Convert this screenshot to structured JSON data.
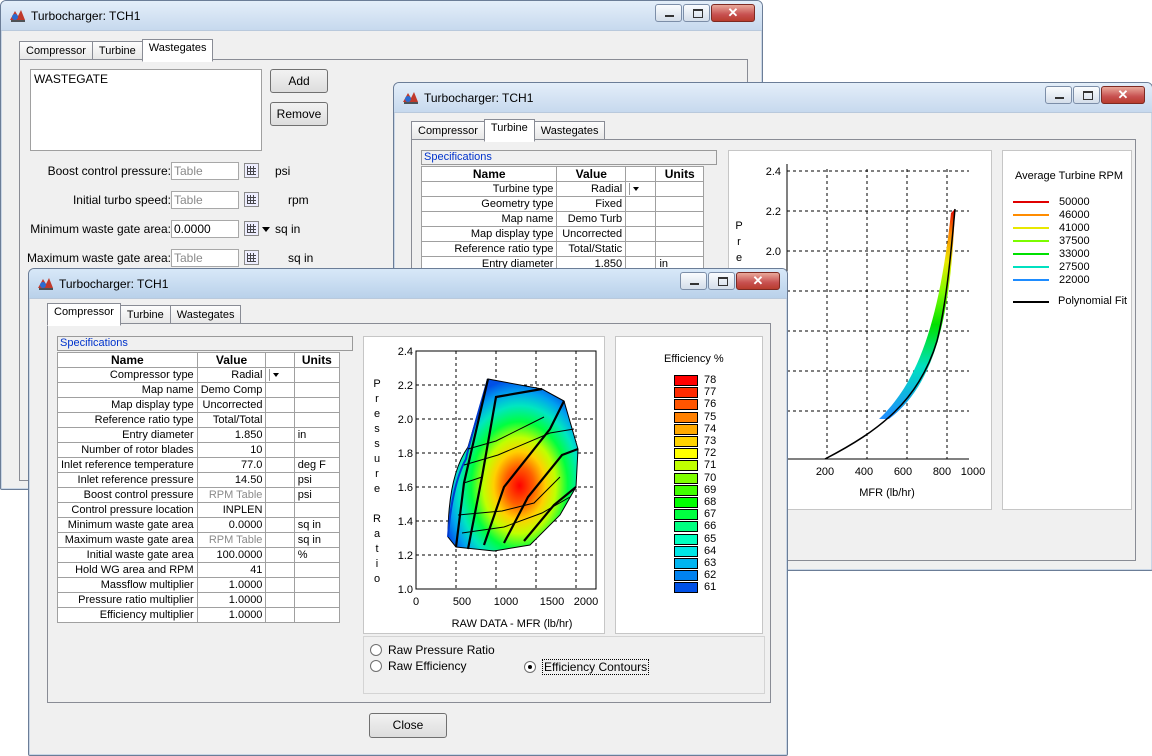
{
  "colors": {
    "accent_link": "#0033cc",
    "close_button": "#c75050",
    "window_border": "#6b7d97"
  },
  "window_back": {
    "title": "Turbocharger: TCH1",
    "tabs": [
      "Compressor",
      "Turbine",
      "Wastegates"
    ],
    "list_item": "WASTEGATE",
    "add_label": "Add",
    "remove_label": "Remove",
    "fields": [
      {
        "label": "Boost control pressure:",
        "value": "Table",
        "unit": "psi"
      },
      {
        "label": "Initial turbo speed:",
        "value": "Table",
        "unit": "rpm"
      },
      {
        "label": "Minimum waste gate area:",
        "value": "0.0000",
        "unit": "sq in"
      },
      {
        "label": "Maximum waste gate area:",
        "value": "Table",
        "unit": "sq in"
      }
    ]
  },
  "window_turbine": {
    "title": "Turbocharger: TCH1",
    "tabs": [
      "Compressor",
      "Turbine",
      "Wastegates"
    ],
    "spec_title": "Specifications",
    "headers": [
      "Name",
      "Value",
      "",
      "Units"
    ],
    "rows": [
      {
        "name": "Turbine type",
        "value": "Radial",
        "dd": true,
        "unit": ""
      },
      {
        "name": "Geometry type",
        "value": "Fixed",
        "unit": ""
      },
      {
        "name": "Map name",
        "value": "Demo Turb",
        "unit": ""
      },
      {
        "name": "Map display type",
        "value": "Uncorrected",
        "unit": ""
      },
      {
        "name": "Reference ratio type",
        "value": "Total/Static",
        "unit": ""
      },
      {
        "name": "Entry diameter",
        "value": "1.850",
        "unit": "in"
      }
    ],
    "chart": {
      "y_letters": [
        "P",
        "r",
        "e"
      ],
      "xlabel": "MFR  (lb/hr)",
      "yticks": [
        "2.4",
        "2.2",
        "2.0"
      ],
      "xticks": [
        "200",
        "400",
        "600",
        "800",
        "1000"
      ]
    },
    "legend_title": "Average Turbine RPM",
    "legend": [
      {
        "label": "50000",
        "color": "#e00000"
      },
      {
        "label": "46000",
        "color": "#ff8c00"
      },
      {
        "label": "41000",
        "color": "#e8e800"
      },
      {
        "label": "37500",
        "color": "#7cfc00"
      },
      {
        "label": "33000",
        "color": "#00e000"
      },
      {
        "label": "27500",
        "color": "#00e0c0"
      },
      {
        "label": "22000",
        "color": "#1e8cff"
      }
    ],
    "fit_label": "Polynomial Fit"
  },
  "window_front": {
    "title": "Turbocharger: TCH1",
    "tabs": [
      "Compressor",
      "Turbine",
      "Wastegates"
    ],
    "spec_title": "Specifications",
    "headers": [
      "Name",
      "Value",
      "",
      "Units"
    ],
    "rows": [
      {
        "name": "Compressor type",
        "value": "Radial",
        "dd": true,
        "unit": ""
      },
      {
        "name": "Map name",
        "value": "Demo Comp",
        "unit": ""
      },
      {
        "name": "Map display type",
        "value": "Uncorrected",
        "unit": ""
      },
      {
        "name": "Reference ratio type",
        "value": "Total/Total",
        "unit": ""
      },
      {
        "name": "Entry diameter",
        "value": "1.850",
        "unit": "in"
      },
      {
        "name": "Number of rotor blades",
        "value": "10",
        "unit": ""
      },
      {
        "name": "Inlet reference temperature",
        "value": "77.0",
        "unit": "deg F"
      },
      {
        "name": "Inlet reference pressure",
        "value": "14.50",
        "unit": "psi"
      },
      {
        "name": "Boost control pressure",
        "value": "RPM Table",
        "gray": true,
        "unit": "psi"
      },
      {
        "name": "Control pressure location",
        "value": "INPLEN",
        "unit": ""
      },
      {
        "name": "Minimum waste gate area",
        "value": "0.0000",
        "unit": "sq in"
      },
      {
        "name": "Maximum waste gate area",
        "value": "RPM Table",
        "gray": true,
        "unit": "sq in"
      },
      {
        "name": "Initial waste gate area",
        "value": "100.0000",
        "unit": "%"
      },
      {
        "name": "Hold WG area and RPM",
        "value": "41",
        "unit": ""
      },
      {
        "name": "Massflow multiplier",
        "value": "1.0000",
        "unit": ""
      },
      {
        "name": "Pressure ratio multiplier",
        "value": "1.0000",
        "unit": ""
      },
      {
        "name": "Efficiency multiplier",
        "value": "1.0000",
        "unit": ""
      }
    ],
    "chart": {
      "y_letters": [
        "P",
        "r",
        "e",
        "s",
        "s",
        "u",
        "r",
        "e",
        "",
        "R",
        "a",
        "t",
        "i",
        "o"
      ],
      "xlabel": "RAW DATA  -  MFR  (lb/hr)",
      "yticks": [
        "2.4",
        "2.2",
        "2.0",
        "1.8",
        "1.6",
        "1.4",
        "1.2",
        "1.0"
      ],
      "xticks": [
        "0",
        "500",
        "1000",
        "1500",
        "2000"
      ]
    },
    "eff_title": "Efficiency %",
    "eff_legend": [
      {
        "label": "78",
        "color": "#ff0000"
      },
      {
        "label": "77",
        "color": "#ff2a00"
      },
      {
        "label": "76",
        "color": "#ff5500"
      },
      {
        "label": "75",
        "color": "#ff8000"
      },
      {
        "label": "74",
        "color": "#ffaa00"
      },
      {
        "label": "73",
        "color": "#ffd400"
      },
      {
        "label": "72",
        "color": "#ffff00"
      },
      {
        "label": "71",
        "color": "#c0ff00"
      },
      {
        "label": "70",
        "color": "#80ff00"
      },
      {
        "label": "69",
        "color": "#40ff00"
      },
      {
        "label": "68",
        "color": "#00ff00"
      },
      {
        "label": "67",
        "color": "#00ff40"
      },
      {
        "label": "66",
        "color": "#00ff80"
      },
      {
        "label": "65",
        "color": "#00ffc0"
      },
      {
        "label": "64",
        "color": "#00e6e6"
      },
      {
        "label": "63",
        "color": "#00b4f0"
      },
      {
        "label": "62",
        "color": "#0082f0"
      },
      {
        "label": "61",
        "color": "#0050e6"
      }
    ],
    "radios": [
      {
        "label": "Raw Pressure Ratio",
        "checked": false
      },
      {
        "label": "Raw Efficiency",
        "checked": false
      },
      {
        "label": "Efficiency Contours",
        "checked": true
      }
    ],
    "close_label": "Close"
  }
}
